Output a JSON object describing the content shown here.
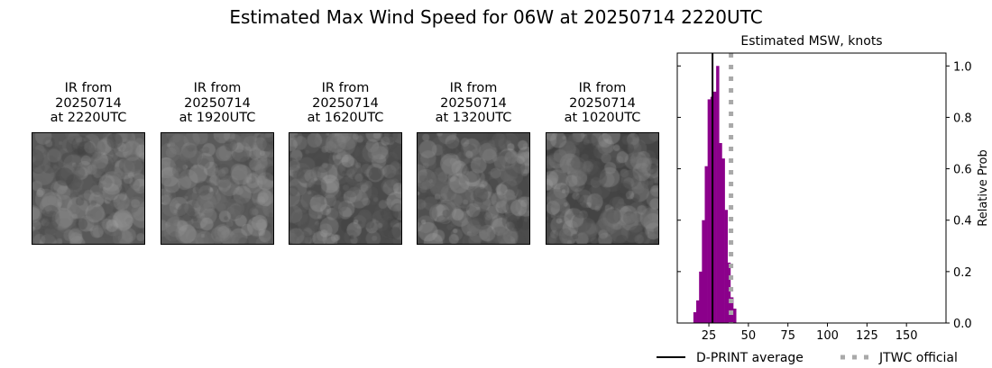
{
  "title": "Estimated Max Wind Speed for 06W at 20250714 2220UTC",
  "panels": [
    {
      "l1": "IR from",
      "l2": "20250714",
      "l3": "at 2220UTC"
    },
    {
      "l1": "IR from",
      "l2": "20250714",
      "l3": "at 1920UTC"
    },
    {
      "l1": "IR from",
      "l2": "20250714",
      "l3": "at 1620UTC"
    },
    {
      "l1": "IR from",
      "l2": "20250714",
      "l3": "at 1320UTC"
    },
    {
      "l1": "IR from",
      "l2": "20250714",
      "l3": "at 1020UTC"
    }
  ],
  "chart_data": {
    "type": "bar",
    "title": "Estimated MSW, knots",
    "ylabel": "Relative Prob",
    "xlim": [
      5,
      175
    ],
    "ylim": [
      0,
      1.05
    ],
    "xticks": [
      25,
      50,
      75,
      100,
      125,
      150
    ],
    "yticks": [
      "0.0",
      "0.2",
      "0.4",
      "0.6",
      "0.8",
      "1.0"
    ],
    "bin_start": 15.2,
    "bin_width": 1.8,
    "values": [
      0.042,
      0.088,
      0.2,
      0.4,
      0.61,
      0.87,
      0.88,
      0.9,
      1.0,
      0.7,
      0.64,
      0.44,
      0.235,
      0.1,
      0.056
    ],
    "bar_color": "#8b008b",
    "dprint_average": 27.3,
    "jtwc_official": 39,
    "legend": [
      {
        "label": "D-PRINT average",
        "color": "#000000",
        "style": "solid"
      },
      {
        "label": "JTWC official",
        "color": "#a9a9a9",
        "style": "dotted"
      }
    ],
    "legend_position": "bottom"
  }
}
